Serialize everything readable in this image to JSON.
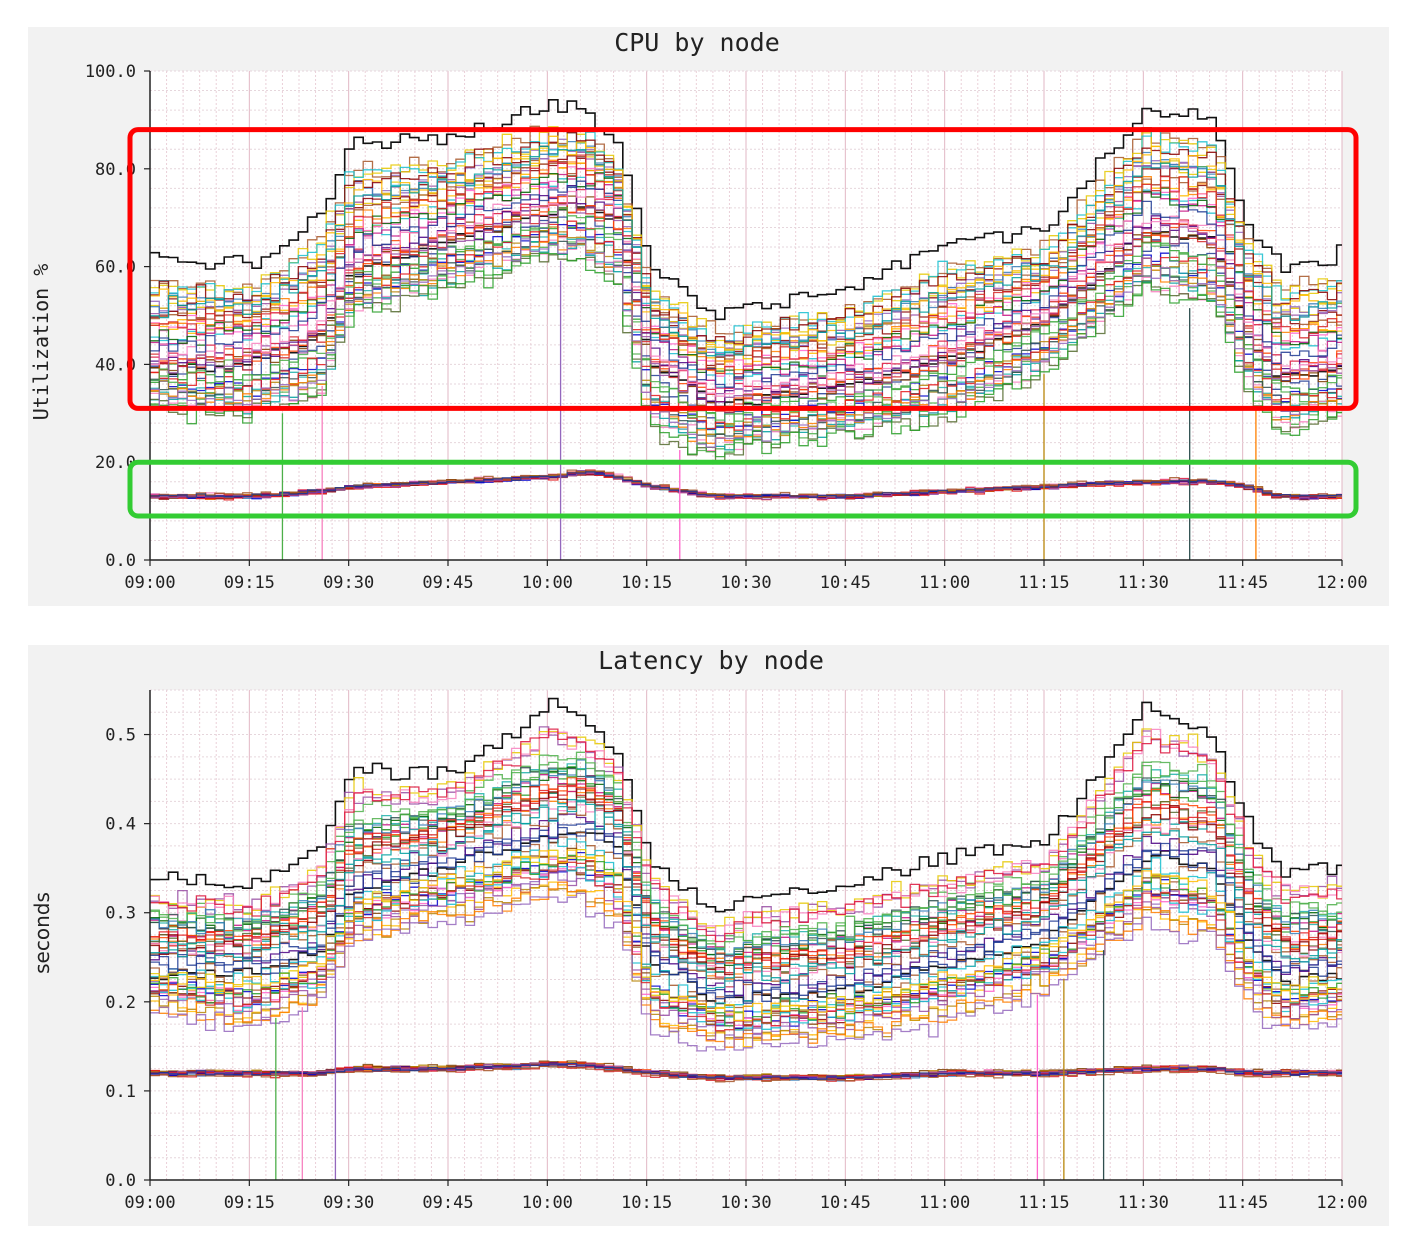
{
  "chart_data": [
    {
      "type": "line",
      "title": "CPU by node",
      "ylabel": "Utilization %",
      "xlabel": "",
      "ylim": [
        0,
        100
      ],
      "xlim": [
        "09:00",
        "12:00"
      ],
      "x_ticks": [
        "09:00",
        "09:15",
        "09:30",
        "09:45",
        "10:00",
        "10:15",
        "10:30",
        "10:45",
        "11:00",
        "11:15",
        "11:30",
        "11:45",
        "12:00"
      ],
      "y_ticks": [
        "0.0",
        "20.0",
        "40.0",
        "60.0",
        "80.0",
        "100.0"
      ],
      "grid": true,
      "legend": "none",
      "series_count_approx": 80,
      "envelope": {
        "x": [
          "09:00",
          "09:15",
          "09:25",
          "09:30",
          "09:45",
          "10:00",
          "10:05",
          "10:10",
          "10:15",
          "10:25",
          "10:30",
          "10:45",
          "11:00",
          "11:15",
          "11:30",
          "11:40",
          "11:45",
          "11:50",
          "12:00"
        ],
        "max": [
          62,
          60,
          70,
          85,
          86,
          93,
          92,
          85,
          60,
          50,
          52,
          56,
          65,
          68,
          92,
          90,
          70,
          60,
          63
        ],
        "high_band_median": [
          42,
          44,
          48,
          62,
          68,
          74,
          76,
          72,
          44,
          34,
          36,
          38,
          44,
          52,
          70,
          68,
          50,
          40,
          42
        ],
        "high_band_min": [
          30,
          28,
          32,
          50,
          55,
          62,
          60,
          55,
          25,
          20,
          22,
          25,
          28,
          38,
          55,
          50,
          35,
          25,
          28
        ],
        "low_band": [
          13,
          13,
          14,
          15,
          16,
          17,
          18,
          17,
          15,
          13,
          13,
          13,
          14,
          15,
          16,
          16,
          15,
          13,
          13
        ]
      },
      "highlights": [
        {
          "color": "#ff0000",
          "from": "09:00",
          "to": "12:00",
          "y_range": [
            31,
            88
          ]
        },
        {
          "color": "#33cc33",
          "from": "09:00",
          "to": "12:00",
          "y_range": [
            9,
            20
          ]
        }
      ]
    },
    {
      "type": "line",
      "title": "Latency by node",
      "ylabel": "seconds",
      "xlabel": "",
      "ylim": [
        0,
        0.55
      ],
      "xlim": [
        "09:00",
        "12:00"
      ],
      "x_ticks": [
        "09:00",
        "09:15",
        "09:30",
        "09:45",
        "10:00",
        "10:15",
        "10:30",
        "10:45",
        "11:00",
        "11:15",
        "11:30",
        "11:45",
        "12:00"
      ],
      "y_ticks": [
        "0.0",
        "0.1",
        "0.2",
        "0.3",
        "0.4",
        "0.5"
      ],
      "grid": true,
      "legend": "none",
      "series_count_approx": 80,
      "envelope": {
        "x": [
          "09:00",
          "09:15",
          "09:25",
          "09:30",
          "09:45",
          "10:00",
          "10:05",
          "10:10",
          "10:15",
          "10:25",
          "10:30",
          "10:45",
          "11:00",
          "11:15",
          "11:30",
          "11:40",
          "11:45",
          "11:50",
          "12:00"
        ],
        "max": [
          0.34,
          0.33,
          0.37,
          0.46,
          0.46,
          0.53,
          0.52,
          0.48,
          0.36,
          0.3,
          0.32,
          0.33,
          0.36,
          0.38,
          0.53,
          0.5,
          0.4,
          0.35,
          0.35
        ],
        "high_band_median": [
          0.25,
          0.25,
          0.27,
          0.34,
          0.37,
          0.4,
          0.41,
          0.39,
          0.26,
          0.22,
          0.22,
          0.23,
          0.26,
          0.29,
          0.38,
          0.37,
          0.29,
          0.24,
          0.25
        ],
        "high_band_min": [
          0.19,
          0.17,
          0.2,
          0.27,
          0.29,
          0.32,
          0.31,
          0.28,
          0.17,
          0.15,
          0.15,
          0.16,
          0.18,
          0.21,
          0.29,
          0.27,
          0.2,
          0.17,
          0.18
        ],
        "low_band": [
          0.12,
          0.12,
          0.12,
          0.125,
          0.125,
          0.13,
          0.13,
          0.125,
          0.12,
          0.115,
          0.115,
          0.115,
          0.12,
          0.12,
          0.125,
          0.125,
          0.12,
          0.12,
          0.12
        ]
      }
    }
  ]
}
